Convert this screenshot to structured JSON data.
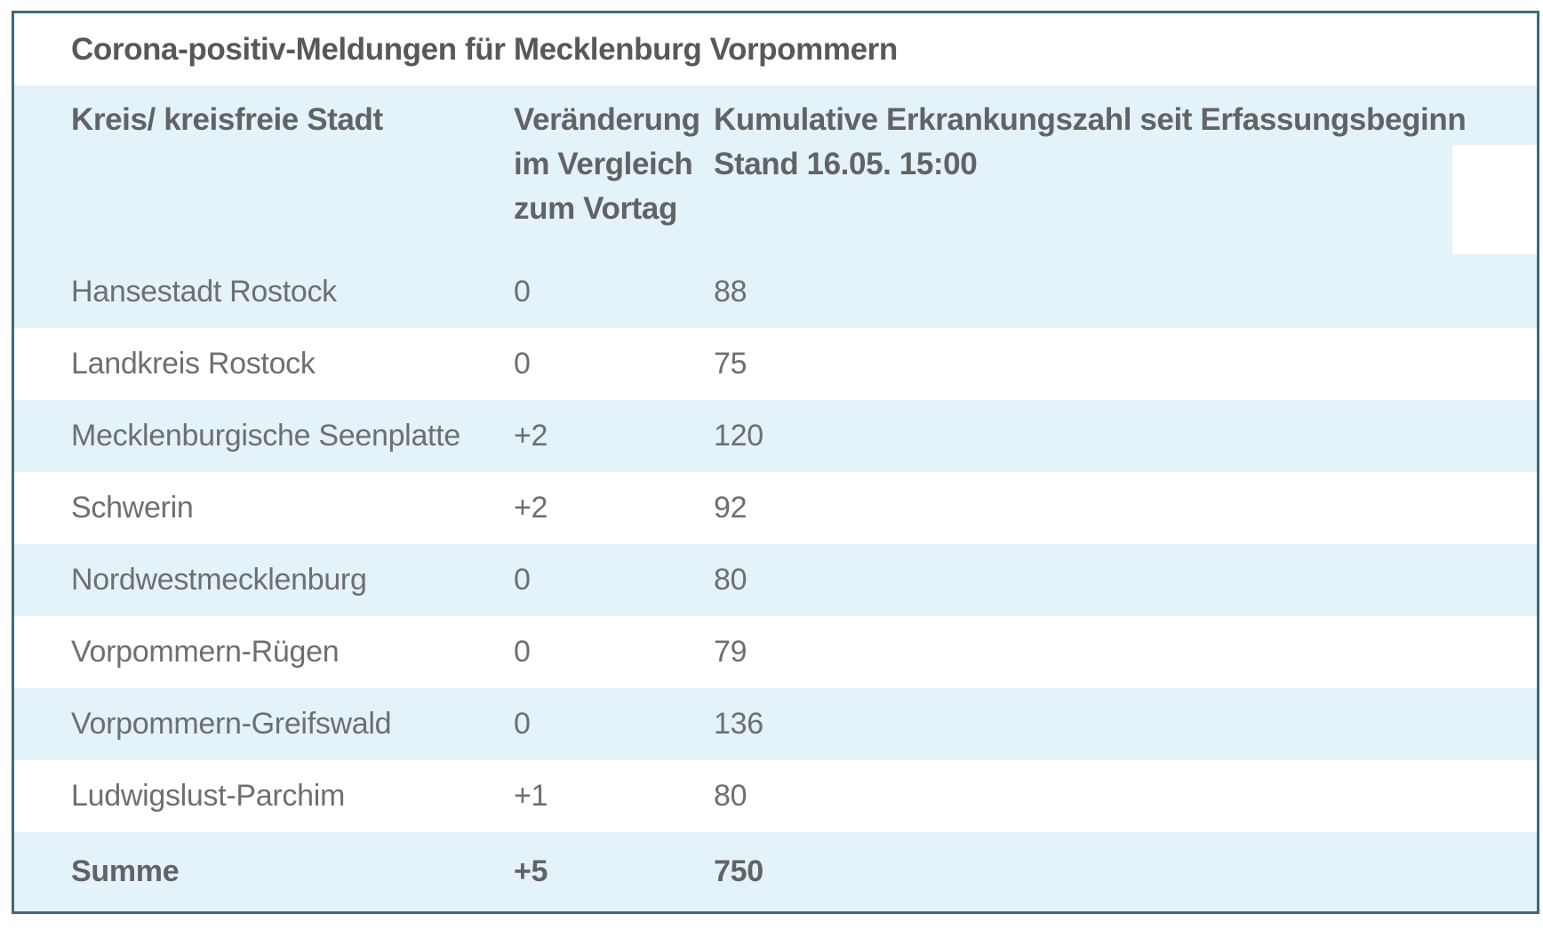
{
  "title": "Corona-positiv-Meldungen für Mecklenburg Vorpommern",
  "table": {
    "headers": {
      "col1": "Kreis/ kreisfreie Stadt",
      "col2": "Veränderung im Vergleich zum Vortag",
      "col3_line1": "Kumulative Erkrankungszahl seit Erfassungsbeginn",
      "col3_line2": "Stand 16.05. 15:00"
    },
    "rows": [
      {
        "name": "Hansestadt Rostock",
        "change": "0",
        "cumulative": "88"
      },
      {
        "name": "Landkreis Rostock",
        "change": "0",
        "cumulative": "75"
      },
      {
        "name": "Mecklenburgische Seenplatte",
        "change": "+2",
        "cumulative": "120"
      },
      {
        "name": "Schwerin",
        "change": "+2",
        "cumulative": "92"
      },
      {
        "name": "Nordwestmecklenburg",
        "change": "0",
        "cumulative": "80"
      },
      {
        "name": "Vorpommern-Rügen",
        "change": "0",
        "cumulative": "79"
      },
      {
        "name": "Vorpommern-Greifswald",
        "change": "0",
        "cumulative": "136"
      },
      {
        "name": "Ludwigslust-Parchim",
        "change": "+1",
        "cumulative": "80"
      },
      {
        "name": "Summe",
        "change": "+5",
        "cumulative": "750"
      }
    ]
  },
  "colors": {
    "row_blue": "#e4f2fa",
    "border_color": "#41687e",
    "title_color": "#58585a",
    "header_color": "#626365",
    "body_color": "#6e6f71",
    "bg": "#ffffff"
  },
  "chart_data": {
    "type": "table",
    "title": "Corona-positiv-Meldungen für Mecklenburg Vorpommern",
    "columns": [
      "Kreis/ kreisfreie Stadt",
      "Veränderung im Vergleich zum Vortag",
      "Kumulative Erkrankungszahl seit Erfassungsbeginn Stand 16.05. 15:00"
    ],
    "rows": [
      [
        "Hansestadt Rostock",
        0,
        88
      ],
      [
        "Landkreis Rostock",
        0,
        75
      ],
      [
        "Mecklenburgische Seenplatte",
        2,
        120
      ],
      [
        "Schwerin",
        2,
        92
      ],
      [
        "Nordwestmecklenburg",
        0,
        80
      ],
      [
        "Vorpommern-Rügen",
        0,
        79
      ],
      [
        "Vorpommern-Greifswald",
        0,
        136
      ],
      [
        "Ludwigslust-Parchim",
        1,
        80
      ],
      [
        "Summe",
        5,
        750
      ]
    ],
    "notes": "Änderungen als '+N' bzw. '0' dargestellt; letzte Zeile ist Summenzeile (fett)."
  }
}
